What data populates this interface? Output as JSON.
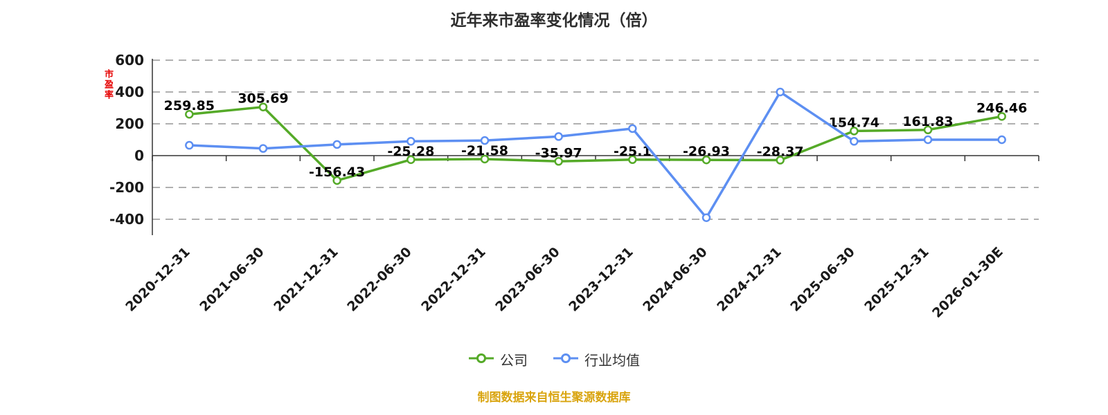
{
  "chart_data": {
    "type": "line",
    "title": "近年来市盈率变化情况（倍）",
    "y_axis_name": "市盈率",
    "categories": [
      "2020-12-31",
      "2021-06-30",
      "2021-12-31",
      "2022-06-30",
      "2022-12-31",
      "2023-06-30",
      "2023-12-31",
      "2024-06-30",
      "2024-12-31",
      "2025-06-30",
      "2025-12-31",
      "2026-01-30E"
    ],
    "series": [
      {
        "name": "公司",
        "color": "#55aa28",
        "values": [
          259.85,
          305.69,
          -156.43,
          -25.28,
          -21.58,
          -35.97,
          -25.1,
          -26.93,
          -28.37,
          154.74,
          161.83,
          246.46
        ],
        "labels": [
          "259.85",
          "305.69",
          "-156.43",
          "-25.28",
          "-21.58",
          "-35.97",
          "-25.1",
          "-26.93",
          "-28.37",
          "154.74",
          "161.83",
          "246.46"
        ]
      },
      {
        "name": "行业均值",
        "color": "#5d8ff2",
        "values": [
          65,
          45,
          70,
          90,
          95,
          120,
          170,
          -390,
          400,
          90,
          100,
          100
        ],
        "labels": null
      }
    ],
    "y_ticks": [
      600,
      400,
      200,
      0,
      -200,
      -400
    ],
    "ylim": [
      -500,
      600
    ],
    "grid": "dashed",
    "legend_position": "bottom"
  },
  "footer": {
    "source_note": "制图数据来自恒生聚源数据库"
  },
  "colors": {
    "company_series": "#55aa28",
    "industry_series": "#5d8ff2",
    "axis_name_red": "#e60000",
    "source_note": "#d9a40e",
    "gridline": "#b0b0b0",
    "axis_line": "#333333"
  }
}
